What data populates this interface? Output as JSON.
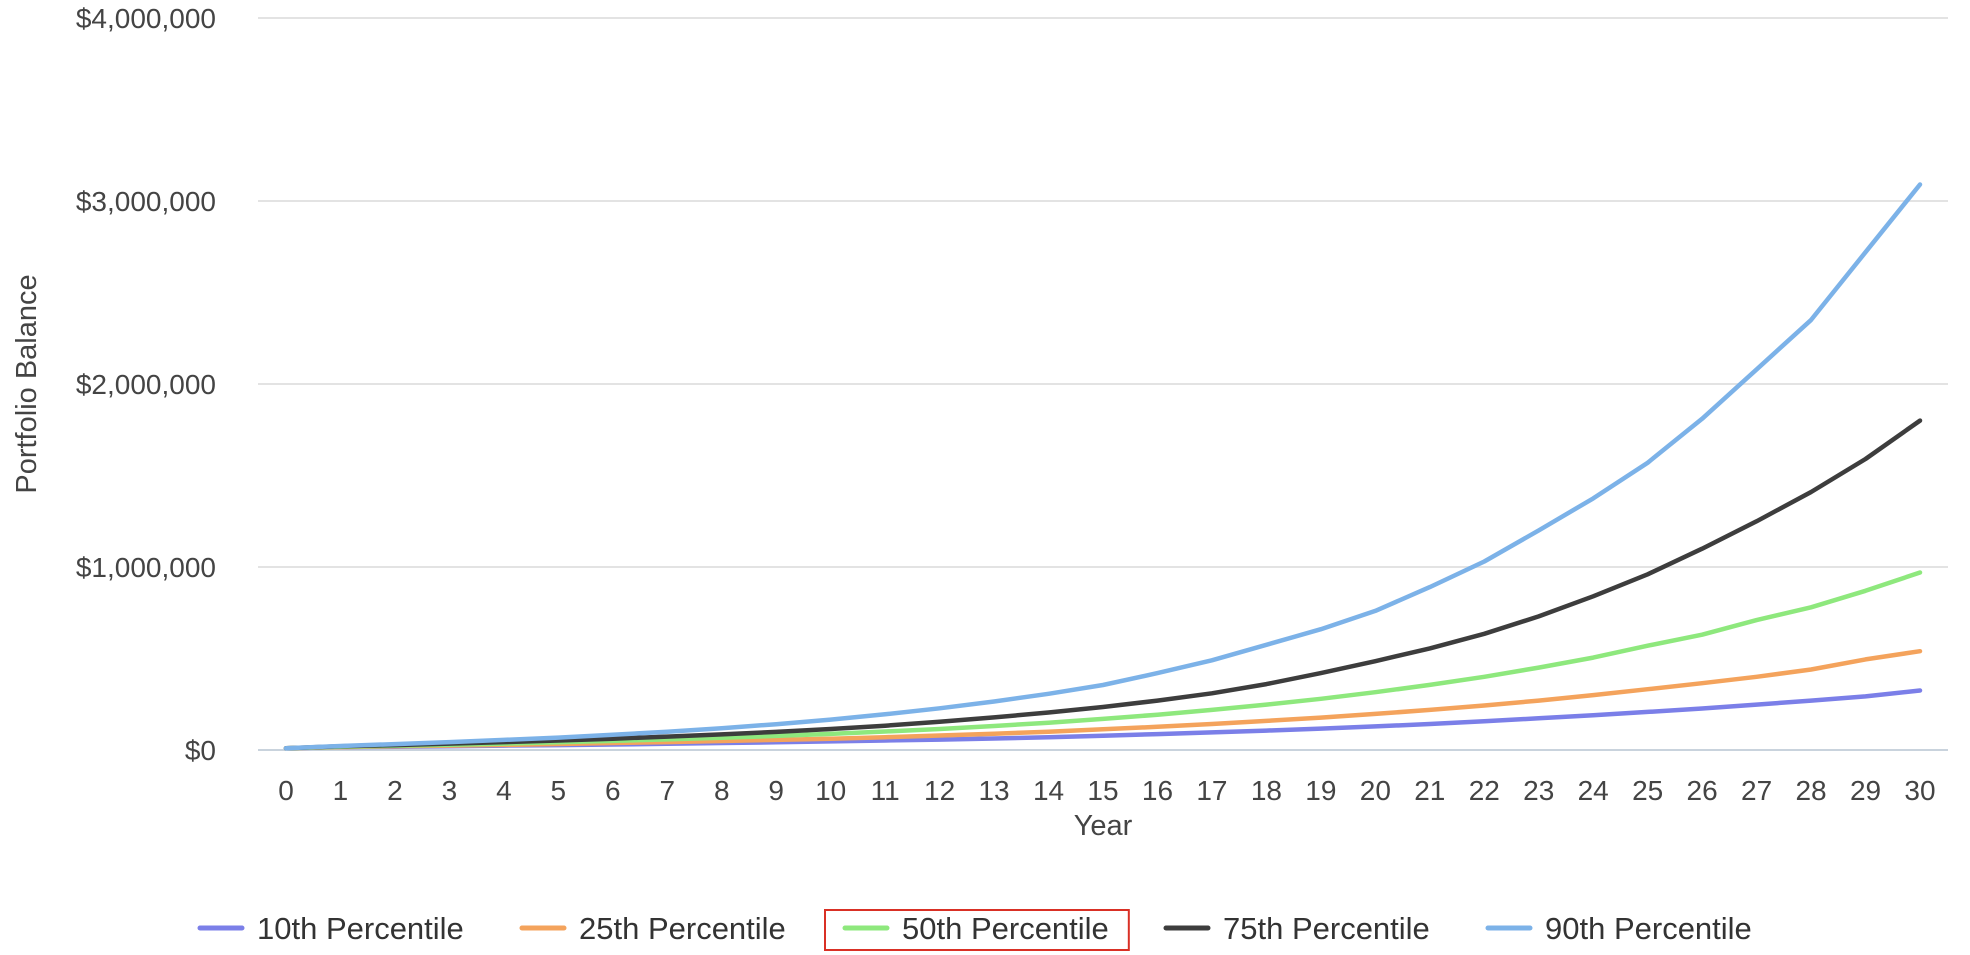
{
  "chart_data": {
    "type": "line",
    "title": "",
    "xlabel": "Year",
    "ylabel": "Portfolio Balance",
    "x": [
      0,
      1,
      2,
      3,
      4,
      5,
      6,
      7,
      8,
      9,
      10,
      11,
      12,
      13,
      14,
      15,
      16,
      17,
      18,
      19,
      20,
      21,
      22,
      23,
      24,
      25,
      26,
      27,
      28,
      29,
      30
    ],
    "ylim": [
      0,
      4000000
    ],
    "yticks": [
      0,
      1000000,
      2000000,
      3000000,
      4000000
    ],
    "ytick_labels": [
      "$0",
      "$1,000,000",
      "$2,000,000",
      "$3,000,000",
      "$4,000,000"
    ],
    "grid": true,
    "legend_position": "bottom",
    "highlighted_legend_entry": "50th Percentile",
    "highlight_color": "#d93025",
    "series": [
      {
        "name": "10th Percentile",
        "color": "#7b7fe8",
        "values": [
          10000,
          15000,
          18000,
          21000,
          24000,
          27000,
          30000,
          34000,
          38000,
          42000,
          47000,
          52000,
          57000,
          63000,
          70000,
          78000,
          87000,
          96000,
          106000,
          117000,
          129000,
          142000,
          157000,
          173000,
          190000,
          208000,
          227000,
          248000,
          270000,
          293000,
          325000
        ]
      },
      {
        "name": "25th Percentile",
        "color": "#f4a35c",
        "values": [
          10000,
          16000,
          20000,
          24000,
          28000,
          33000,
          38000,
          43000,
          49000,
          55000,
          62000,
          70000,
          79000,
          89000,
          100000,
          113000,
          127000,
          142000,
          159000,
          177000,
          197000,
          219000,
          243000,
          270000,
          300000,
          332000,
          365000,
          400000,
          440000,
          495000,
          540000
        ]
      },
      {
        "name": "50th Percentile",
        "color": "#8ee87d",
        "values": [
          10000,
          18000,
          23000,
          29000,
          35000,
          42000,
          50000,
          58000,
          67000,
          77000,
          88000,
          101000,
          115000,
          131000,
          149000,
          170000,
          193000,
          219000,
          248000,
          280000,
          316000,
          356000,
          400000,
          450000,
          505000,
          570000,
          630000,
          710000,
          780000,
          870000,
          970000
        ]
      },
      {
        "name": "75th Percentile",
        "color": "#3d3d3d",
        "values": [
          10000,
          20000,
          27000,
          35000,
          43000,
          52000,
          62000,
          73000,
          85000,
          99000,
          115000,
          133000,
          154000,
          178000,
          205000,
          235000,
          270000,
          310000,
          360000,
          420000,
          485000,
          555000,
          635000,
          730000,
          840000,
          960000,
          1100000,
          1250000,
          1410000,
          1590000,
          1800000
        ]
      },
      {
        "name": "90th Percentile",
        "color": "#7cb2e8",
        "values": [
          10000,
          22000,
          32000,
          43000,
          55000,
          68000,
          83000,
          100000,
          119000,
          141000,
          166000,
          195000,
          228000,
          265000,
          307000,
          355000,
          420000,
          490000,
          575000,
          660000,
          760000,
          890000,
          1030000,
          1200000,
          1375000,
          1570000,
          1810000,
          2080000,
          2350000,
          2720000,
          3090000
        ]
      }
    ]
  }
}
